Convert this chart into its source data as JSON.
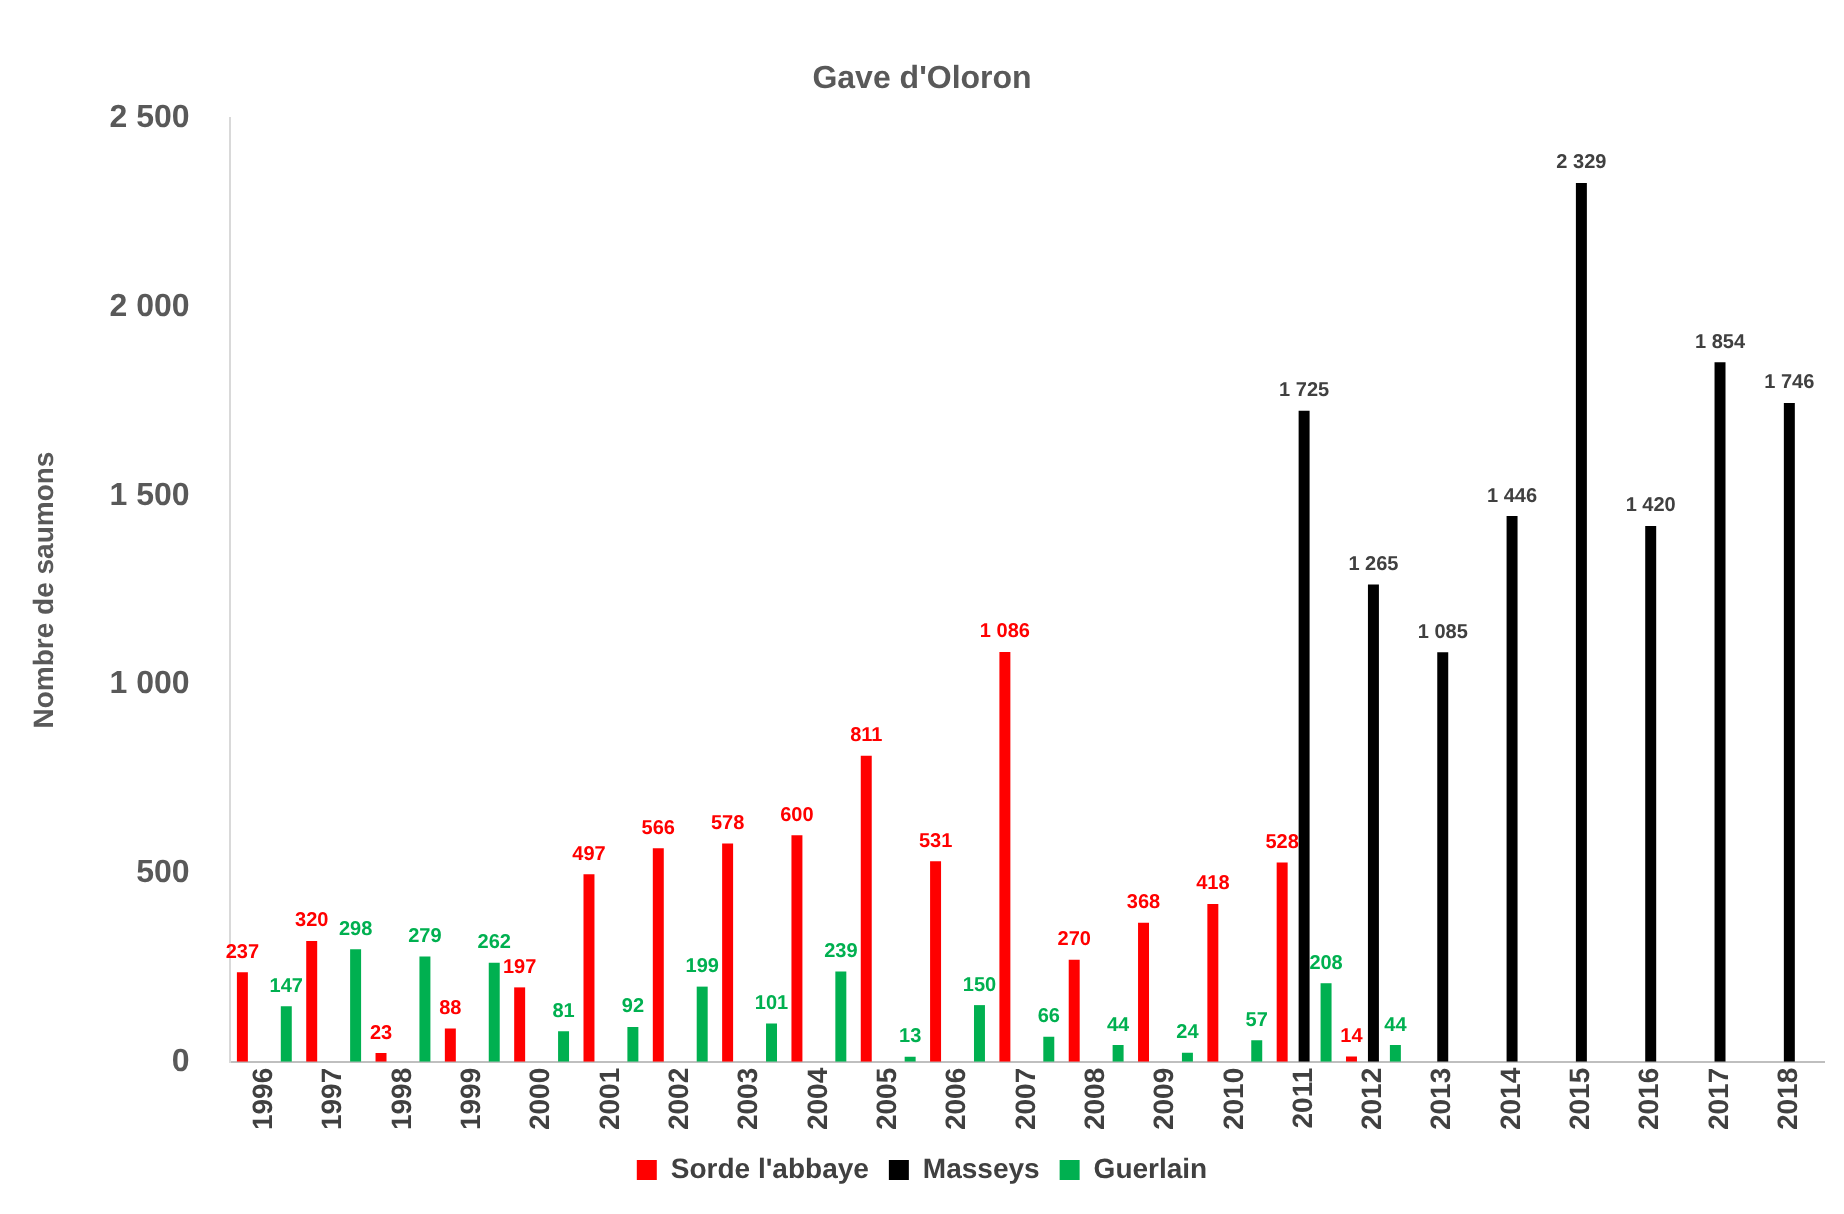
{
  "chart_data": {
    "type": "bar",
    "title": "Gave d'Oloron",
    "ylabel": "Nombre de saumons",
    "categories": [
      "1996",
      "1997",
      "1998",
      "1999",
      "2000",
      "2001",
      "2002",
      "2003",
      "2004",
      "2005",
      "2006",
      "2007",
      "2008",
      "2009",
      "2010",
      "2011",
      "2012",
      "2013",
      "2014",
      "2015",
      "2016",
      "2017",
      "2018"
    ],
    "series": [
      {
        "name": "Sorde l'abbaye",
        "color": "#ff0000",
        "values": [
          237,
          320,
          23,
          88,
          197,
          497,
          566,
          578,
          600,
          811,
          531,
          1086,
          270,
          368,
          418,
          528,
          14,
          null,
          null,
          null,
          null,
          null,
          null
        ],
        "value_labels": [
          "237",
          "320",
          "23",
          "88",
          "197",
          "497",
          "566",
          "578",
          "600",
          "811",
          "531",
          "1 086",
          "270",
          "368",
          "418",
          "528",
          "14",
          null,
          null,
          null,
          null,
          null,
          null
        ]
      },
      {
        "name": "Masseys",
        "color": "#000000",
        "values": [
          null,
          null,
          null,
          null,
          null,
          null,
          null,
          null,
          null,
          null,
          null,
          null,
          null,
          null,
          null,
          1725,
          1265,
          1085,
          1446,
          2329,
          1420,
          1854,
          1746
        ],
        "value_labels": [
          null,
          null,
          null,
          null,
          null,
          null,
          null,
          null,
          null,
          null,
          null,
          null,
          null,
          null,
          null,
          "1 725",
          "1 265",
          "1 085",
          "1 446",
          "2 329",
          "1 420",
          "1 854",
          "1 746"
        ]
      },
      {
        "name": "Guerlain",
        "color": "#00b050",
        "values": [
          147,
          298,
          279,
          262,
          81,
          92,
          199,
          101,
          239,
          13,
          150,
          66,
          44,
          24,
          57,
          208,
          44,
          null,
          null,
          null,
          null,
          null,
          null
        ],
        "value_labels": [
          "147",
          "298",
          "279",
          "262",
          "81",
          "92",
          "199",
          "101",
          "239",
          "13",
          "150",
          "66",
          "44",
          "24",
          "57",
          "208",
          "44",
          null,
          null,
          null,
          null,
          null,
          null
        ]
      }
    ],
    "ylim": [
      0,
      2500
    ],
    "yticks": [
      0,
      500,
      {
        "value": 1000,
        "label": "1 000"
      },
      {
        "value": 1500,
        "label": "1 500"
      },
      {
        "value": 2000,
        "label": "2 000"
      },
      {
        "value": 2500,
        "label": "2 500"
      }
    ],
    "grid": false,
    "legend": "bottom"
  }
}
